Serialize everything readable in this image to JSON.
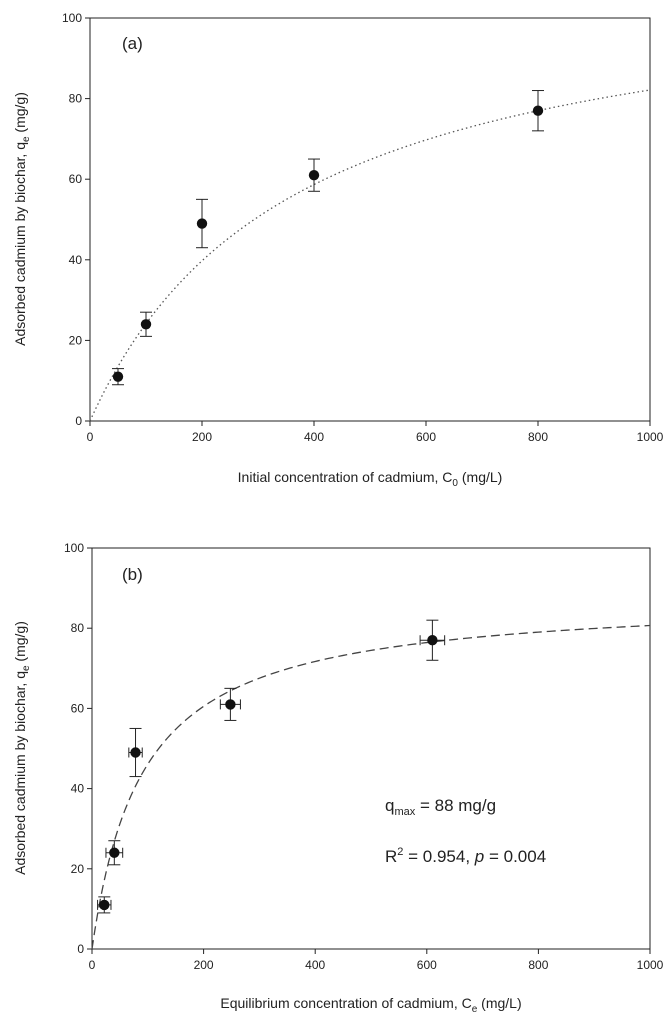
{
  "chart_data": [
    {
      "type": "scatter",
      "panel_label": "(a)",
      "xlabel": {
        "main": "Initial concentration of cadmium, C",
        "sub": "0",
        "unit": " (mg/L)"
      },
      "ylabel": {
        "main": "Adsorbed cadmium by biochar, q",
        "sub": "e",
        "unit": " (mg/g)"
      },
      "xlim": [
        0,
        1000
      ],
      "ylim": [
        0,
        100
      ],
      "xticks": [
        0,
        200,
        400,
        600,
        800,
        1000
      ],
      "yticks": [
        0,
        20,
        40,
        60,
        80,
        100
      ],
      "grid": false,
      "series": [
        {
          "marker": "filled-circle",
          "x": [
            50,
            100,
            200,
            400,
            800
          ],
          "y": [
            11,
            24,
            49,
            61,
            77
          ],
          "y_err": [
            2,
            3,
            6,
            4,
            5
          ]
        }
      ],
      "fit": {
        "style": "dotted",
        "color": "#555555",
        "qmax": 112,
        "k": 0.00275,
        "model": "langmuir"
      }
    },
    {
      "type": "scatter",
      "panel_label": "(b)",
      "xlabel": {
        "main": "Equilibrium concentration of cadmium, C",
        "sub": "e",
        "unit": " (mg/L)"
      },
      "ylabel": {
        "main": "Adsorbed cadmium by biochar, q",
        "sub": "e",
        "unit": " (mg/g)"
      },
      "xlim": [
        0,
        1000
      ],
      "ylim": [
        0,
        100
      ],
      "xticks": [
        0,
        200,
        400,
        600,
        800,
        1000
      ],
      "yticks": [
        0,
        20,
        40,
        60,
        80,
        100
      ],
      "grid": false,
      "series": [
        {
          "marker": "filled-circle",
          "x": [
            22,
            40,
            78,
            248,
            610
          ],
          "y": [
            11,
            24,
            49,
            61,
            77
          ],
          "y_err": [
            2,
            3,
            6,
            4,
            5
          ],
          "x_err": [
            12,
            15,
            12,
            18,
            22
          ]
        }
      ],
      "fit": {
        "style": "dashed",
        "color": "#444444",
        "qmax": 88,
        "k": 0.011,
        "model": "langmuir"
      },
      "annotations": {
        "qmax": {
          "prefix": "q",
          "sub": "max",
          "suffix": " = 88 mg/g"
        },
        "r2": {
          "prefix": "R",
          "sup": "2",
          "mid": " = 0.954, ",
          "p": "p",
          "suffix": " = 0.004"
        }
      }
    }
  ]
}
